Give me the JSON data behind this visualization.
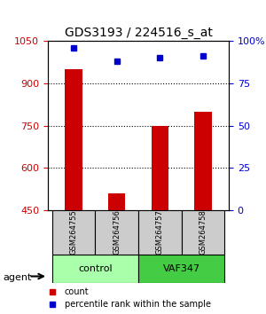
{
  "title": "GDS3193 / 224516_s_at",
  "samples": [
    "GSM264755",
    "GSM264756",
    "GSM264757",
    "GSM264758"
  ],
  "groups": [
    "control",
    "control",
    "VAF347",
    "VAF347"
  ],
  "bar_values": [
    950,
    510,
    750,
    800
  ],
  "dot_values": [
    96,
    88,
    90,
    91
  ],
  "ylim_left": [
    450,
    1050
  ],
  "ylim_right": [
    0,
    100
  ],
  "yticks_left": [
    450,
    600,
    750,
    900,
    1050
  ],
  "yticks_right": [
    0,
    25,
    50,
    75,
    100
  ],
  "bar_color": "#cc0000",
  "dot_color": "#0000cc",
  "group_colors": {
    "control": "#aaffaa",
    "VAF347": "#44cc44"
  },
  "agent_label": "agent",
  "legend_count": "count",
  "legend_pct": "percentile rank within the sample",
  "left_axis_color": "#cc0000",
  "right_axis_color": "#0000cc",
  "bar_width": 0.4
}
